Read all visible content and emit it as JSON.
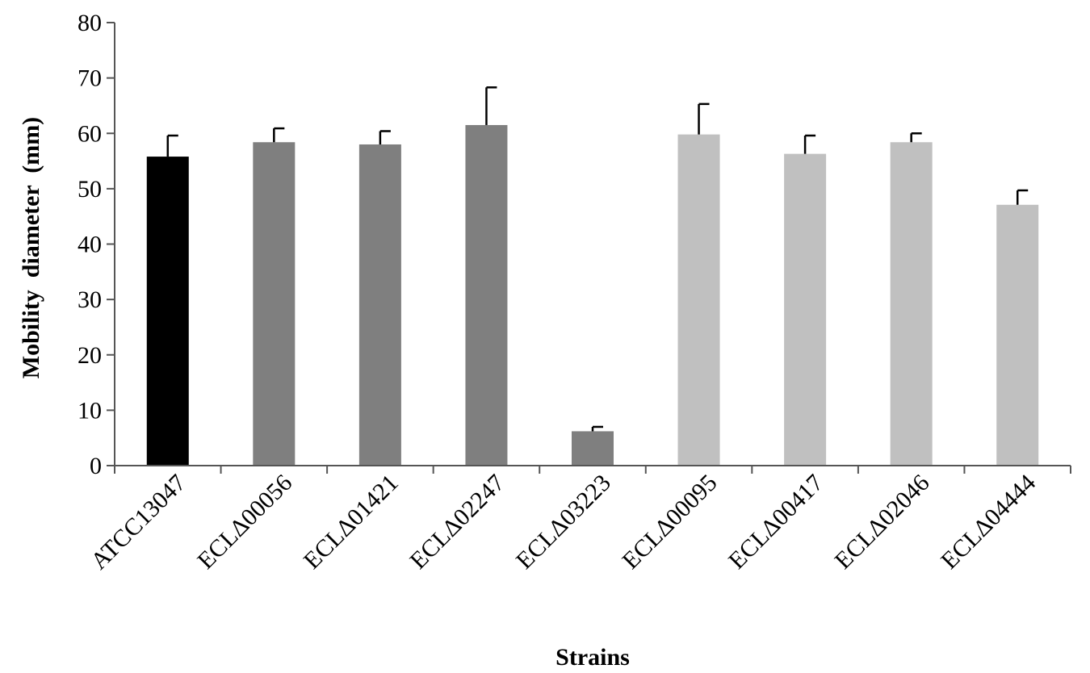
{
  "chart_data": {
    "type": "bar",
    "title": "",
    "xlabel": "Strains",
    "ylabel": "Mobility  diameter  (mm)",
    "ylim": [
      0,
      80
    ],
    "yticks": [
      0,
      10,
      20,
      30,
      40,
      50,
      60,
      70,
      80
    ],
    "categories": [
      "ATCC13047",
      "ECLΔ00056",
      "ECLΔ01421",
      "ECLΔ02247",
      "ECLΔ03223",
      "ECLΔ00095",
      "ECLΔ00417",
      "ECLΔ02046",
      "ECLΔ04444"
    ],
    "values": [
      55.8,
      58.4,
      58.0,
      61.5,
      6.2,
      59.8,
      56.3,
      58.4,
      47.1
    ],
    "errors": [
      3.8,
      2.5,
      2.4,
      6.8,
      0.8,
      5.5,
      3.3,
      1.6,
      2.6
    ],
    "colors": [
      "#000000",
      "#7f7f7f",
      "#7f7f7f",
      "#7f7f7f",
      "#7f7f7f",
      "#c0c0c0",
      "#c0c0c0",
      "#c0c0c0",
      "#c0c0c0"
    ],
    "grid": false,
    "legend": "none"
  }
}
